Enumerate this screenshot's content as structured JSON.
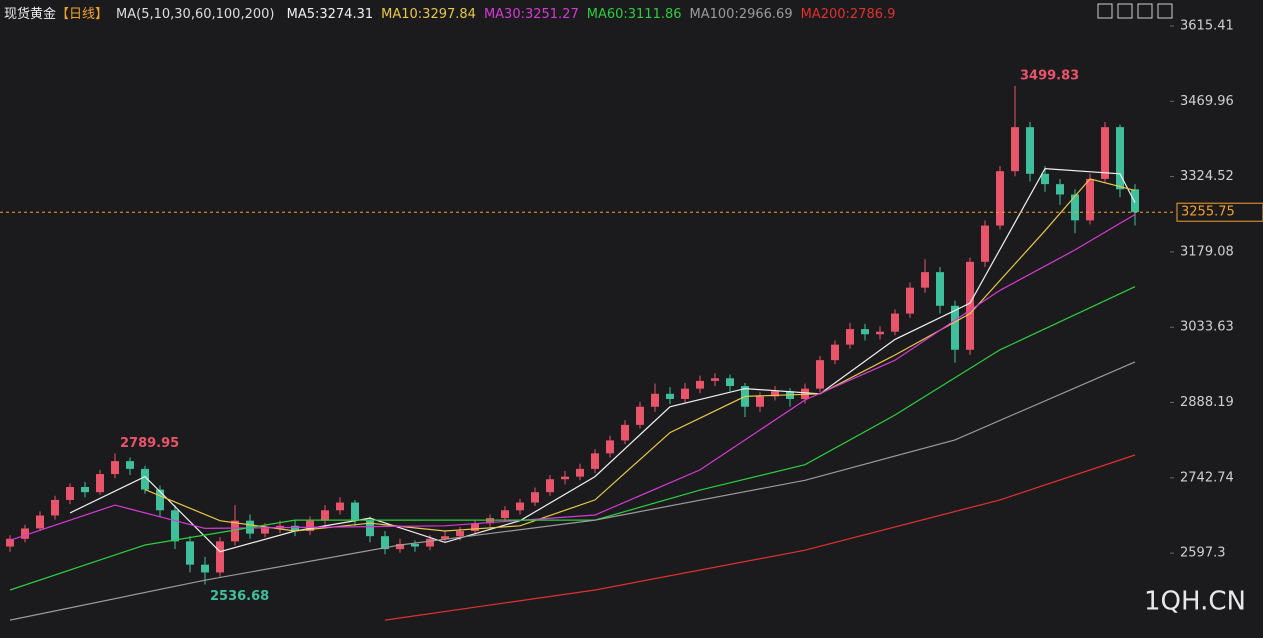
{
  "chart_data": {
    "type": "candlestick",
    "title": "现货黄金",
    "period": "【日线】",
    "ma_params": "MA(5,10,30,60,100,200)",
    "up_color": "#e8556a",
    "down_color": "#3fbf9b",
    "open": [
      2610,
      2625,
      2645,
      2670,
      2700,
      2725,
      2715,
      2750,
      2775,
      2760,
      2720,
      2680,
      2620,
      2575,
      2560,
      2620,
      2660,
      2635,
      2645,
      2650,
      2640,
      2660,
      2680,
      2695,
      2660,
      2630,
      2605,
      2615,
      2610,
      2625,
      2630,
      2640,
      2655,
      2665,
      2680,
      2695,
      2715,
      2740,
      2745,
      2760,
      2790,
      2815,
      2845,
      2880,
      2905,
      2895,
      2915,
      2930,
      2935,
      2920,
      2880,
      2900,
      2910,
      2895,
      2915,
      2970,
      3000,
      3030,
      3020,
      3025,
      3060,
      3110,
      3140,
      3075,
      2990,
      3160,
      3230,
      3335,
      3420,
      3330,
      3310,
      3290,
      3240,
      3320,
      3420,
      3300
    ],
    "high": [
      2632,
      2652,
      2678,
      2708,
      2732,
      2735,
      2758,
      2789.95,
      2782,
      2766,
      2728,
      2690,
      2630,
      2590,
      2628,
      2690,
      2672,
      2655,
      2660,
      2662,
      2668,
      2690,
      2705,
      2700,
      2668,
      2640,
      2625,
      2622,
      2632,
      2640,
      2648,
      2662,
      2672,
      2688,
      2702,
      2724,
      2748,
      2756,
      2770,
      2798,
      2824,
      2854,
      2890,
      2925,
      2918,
      2926,
      2940,
      2945,
      2942,
      2926,
      2908,
      2920,
      2916,
      2925,
      2978,
      3008,
      3042,
      3040,
      3035,
      3068,
      3120,
      3165,
      3150,
      3085,
      3168,
      3240,
      3345,
      3499.83,
      3430,
      3345,
      3320,
      3300,
      3330,
      3430,
      3425,
      3310
    ],
    "low": [
      2600,
      2618,
      2640,
      2662,
      2692,
      2705,
      2710,
      2742,
      2748,
      2712,
      2668,
      2605,
      2560,
      2536.68,
      2552,
      2612,
      2625,
      2628,
      2636,
      2630,
      2632,
      2652,
      2672,
      2650,
      2618,
      2595,
      2598,
      2600,
      2603,
      2618,
      2622,
      2634,
      2648,
      2658,
      2672,
      2688,
      2708,
      2730,
      2738,
      2752,
      2782,
      2808,
      2838,
      2870,
      2885,
      2888,
      2906,
      2920,
      2910,
      2860,
      2870,
      2892,
      2880,
      2886,
      2908,
      2962,
      2992,
      3008,
      3010,
      3018,
      3052,
      3100,
      3060,
      2965,
      2980,
      3150,
      3222,
      3325,
      3315,
      3295,
      3270,
      3215,
      3232,
      3312,
      3285,
      3230
    ],
    "close": [
      2625,
      2645,
      2670,
      2700,
      2725,
      2715,
      2750,
      2775,
      2760,
      2720,
      2680,
      2620,
      2575,
      2560,
      2620,
      2660,
      2635,
      2645,
      2650,
      2640,
      2660,
      2680,
      2695,
      2660,
      2630,
      2605,
      2615,
      2610,
      2625,
      2630,
      2640,
      2655,
      2665,
      2680,
      2695,
      2715,
      2740,
      2745,
      2760,
      2790,
      2815,
      2845,
      2880,
      2905,
      2895,
      2915,
      2930,
      2935,
      2920,
      2880,
      2900,
      2910,
      2895,
      2915,
      2970,
      3000,
      3030,
      3020,
      3025,
      3060,
      3110,
      3140,
      3075,
      2990,
      3160,
      3230,
      3335,
      3420,
      3330,
      3310,
      3290,
      3240,
      3320,
      3420,
      3300,
      3255.75
    ],
    "series": [
      {
        "name": "MA5:3274.31",
        "color": "#f0f0f0",
        "x": [
          4,
          9,
          14,
          19,
          24,
          29,
          34,
          39,
          44,
          49,
          54,
          59,
          64,
          69,
          74,
          75
        ],
        "values": [
          2675,
          2745,
          2600,
          2640,
          2665,
          2618,
          2660,
          2745,
          2880,
          2915,
          2905,
          3010,
          3080,
          3340,
          3330,
          3274.31
        ]
      },
      {
        "name": "MA10:3297.84",
        "color": "#e6c84a",
        "x": [
          9,
          14,
          19,
          24,
          29,
          34,
          39,
          44,
          49,
          54,
          59,
          64,
          69,
          72,
          75
        ],
        "values": [
          2720,
          2660,
          2640,
          2655,
          2640,
          2650,
          2700,
          2830,
          2900,
          2905,
          2980,
          3060,
          3220,
          3320,
          3297.84
        ]
      },
      {
        "name": "MA30:3251.27",
        "color": "#d63ad6",
        "x": [
          0,
          7,
          13,
          29,
          39,
          46,
          53,
          59,
          66,
          71,
          75
        ],
        "values": [
          2622,
          2690,
          2645,
          2650,
          2671,
          2758,
          2893,
          2970,
          3105,
          3183,
          3251.27
        ]
      },
      {
        "name": "MA60:3111.86",
        "color": "#2ecc40",
        "x": [
          0,
          9,
          19,
          39,
          46,
          53,
          59,
          66,
          75
        ],
        "values": [
          2526,
          2613,
          2661,
          2661,
          2719,
          2768,
          2864,
          2990,
          3111.86
        ]
      },
      {
        "name": "MA100:2966.69",
        "color": "#9a9a9a",
        "x": [
          0,
          13,
          26,
          39,
          53,
          63,
          75
        ],
        "values": [
          2468,
          2545,
          2613,
          2661,
          2738,
          2816,
          2966.69
        ]
      },
      {
        "name": "MA200:2786.9",
        "color": "#e03030",
        "x": [
          25,
          39,
          53,
          66,
          75
        ],
        "values": [
          2468,
          2526,
          2603,
          2700,
          2786.9
        ]
      }
    ],
    "annotations": [
      {
        "value": 3499.83,
        "color": "#e8556a"
      },
      {
        "value": 2789.95,
        "color": "#e8556a"
      },
      {
        "value": 2536.68,
        "color": "#3fbf9b"
      }
    ],
    "last_price": 3255.75,
    "ylim": [
      2448.8,
      3627.0
    ],
    "yticks": [
      3615.41,
      3469.96,
      3324.52,
      3179.08,
      3033.63,
      2888.19,
      2742.74,
      2597.3
    ],
    "watermark": "1QH.CN"
  }
}
